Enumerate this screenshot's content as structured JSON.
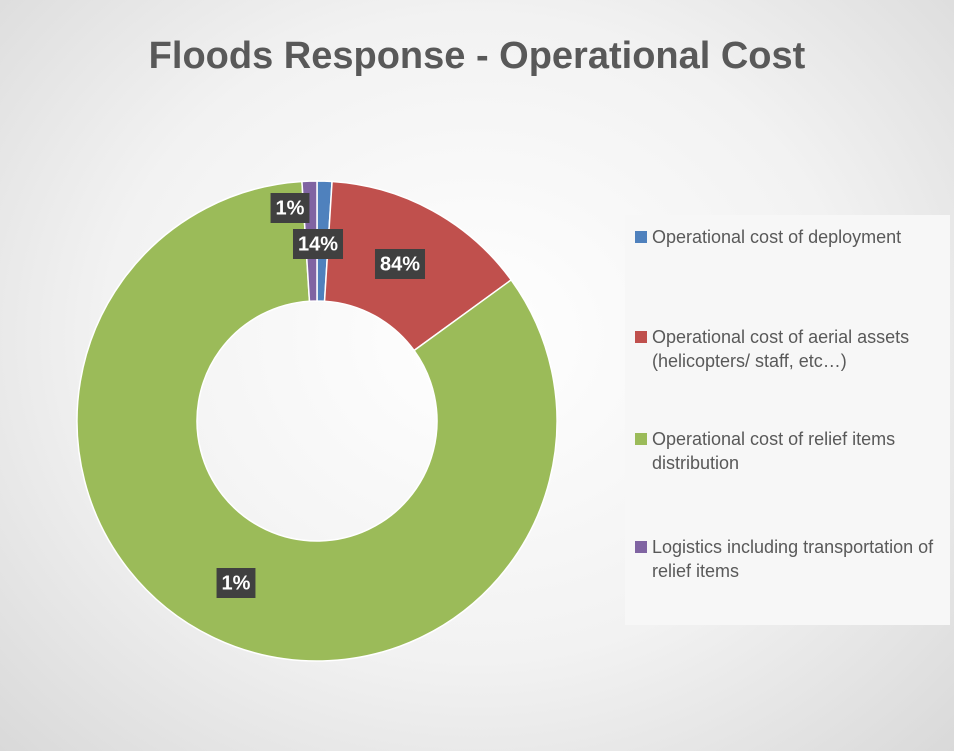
{
  "chart_data": {
    "type": "donut",
    "title": "Floods Response - Operational Cost",
    "categories": [
      "Operational cost of deployment",
      "Operational cost of aerial assets (helicopters/ staff, etc…)",
      "Operational cost of relief items distribution",
      "Logistics including transportation of relief items"
    ],
    "values": [
      1,
      14,
      84,
      1
    ],
    "value_labels": [
      "1%",
      "14%",
      "84%",
      "1%"
    ],
    "colors": [
      "#4f81bd",
      "#c0504d",
      "#9bbb59",
      "#8064a2"
    ],
    "legend": "right"
  }
}
